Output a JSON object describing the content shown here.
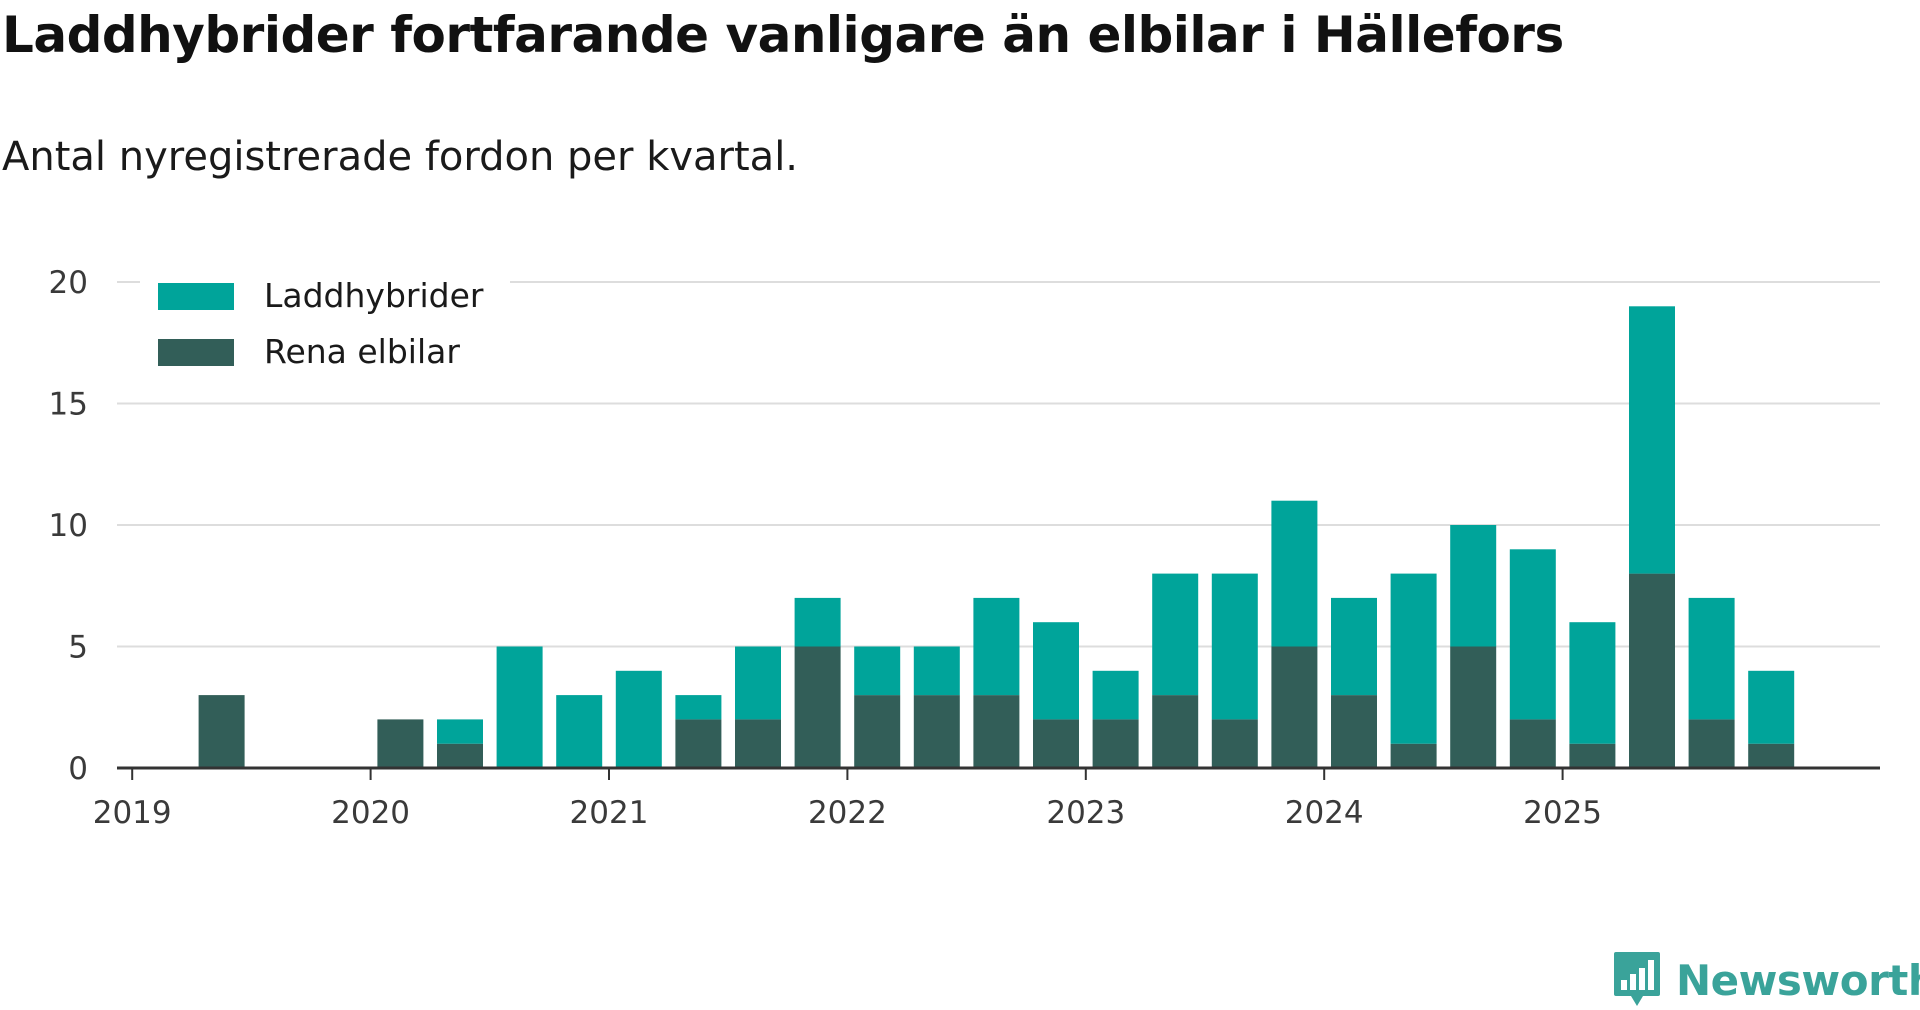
{
  "title": "Laddhybrider fortfarande vanligare än elbilar i Hällefors",
  "subtitle": "Antal nyregistrerade fordon per kvartal.",
  "brand": {
    "name": "Newsworthy",
    "icon": "newsworthy-logo-icon",
    "color": "#3aa39a"
  },
  "colors": {
    "laddhybrider": "#00a49a",
    "rena_elbilar": "#325e58",
    "grid": "#dddddd",
    "axis": "#333333"
  },
  "chart_data": {
    "type": "bar",
    "stacked": true,
    "categories": [
      "2019 Q1",
      "2019 Q2",
      "2019 Q3",
      "2019 Q4",
      "2020 Q1",
      "2020 Q2",
      "2020 Q3",
      "2020 Q4",
      "2021 Q1",
      "2021 Q2",
      "2021 Q3",
      "2021 Q4",
      "2022 Q1",
      "2022 Q2",
      "2022 Q3",
      "2022 Q4",
      "2023 Q1",
      "2023 Q2",
      "2023 Q3",
      "2023 Q4",
      "2024 Q1",
      "2024 Q2",
      "2024 Q3",
      "2024 Q4",
      "2025 Q1",
      "2025 Q2",
      "2025 Q3",
      "2025 Q4"
    ],
    "series": [
      {
        "name": "Rena elbilar",
        "color": "#325e58",
        "values": [
          0,
          3,
          0,
          0,
          2,
          1,
          0,
          0,
          0,
          2,
          2,
          5,
          3,
          3,
          3,
          2,
          2,
          3,
          2,
          5,
          3,
          1,
          5,
          2,
          1,
          8,
          2,
          1
        ]
      },
      {
        "name": "Laddhybrider",
        "color": "#00a49a",
        "values": [
          0,
          0,
          0,
          0,
          0,
          1,
          5,
          3,
          4,
          1,
          3,
          2,
          2,
          2,
          4,
          4,
          2,
          5,
          6,
          6,
          4,
          7,
          5,
          7,
          5,
          11,
          5,
          3
        ]
      }
    ],
    "legend": [
      {
        "name": "Laddhybrider",
        "color": "#00a49a"
      },
      {
        "name": "Rena elbilar",
        "color": "#325e58"
      }
    ],
    "legend_position": "top-left",
    "yticks": [
      0,
      5,
      10,
      15,
      20
    ],
    "ytick_labels": [
      "0",
      "5",
      "10",
      "15",
      "20"
    ],
    "xtick_labels": [
      "2019",
      "2020",
      "2021",
      "2022",
      "2023",
      "2024",
      "2025"
    ],
    "ylim": [
      0,
      20
    ],
    "xlabel": "",
    "ylabel": "",
    "grid": true
  }
}
